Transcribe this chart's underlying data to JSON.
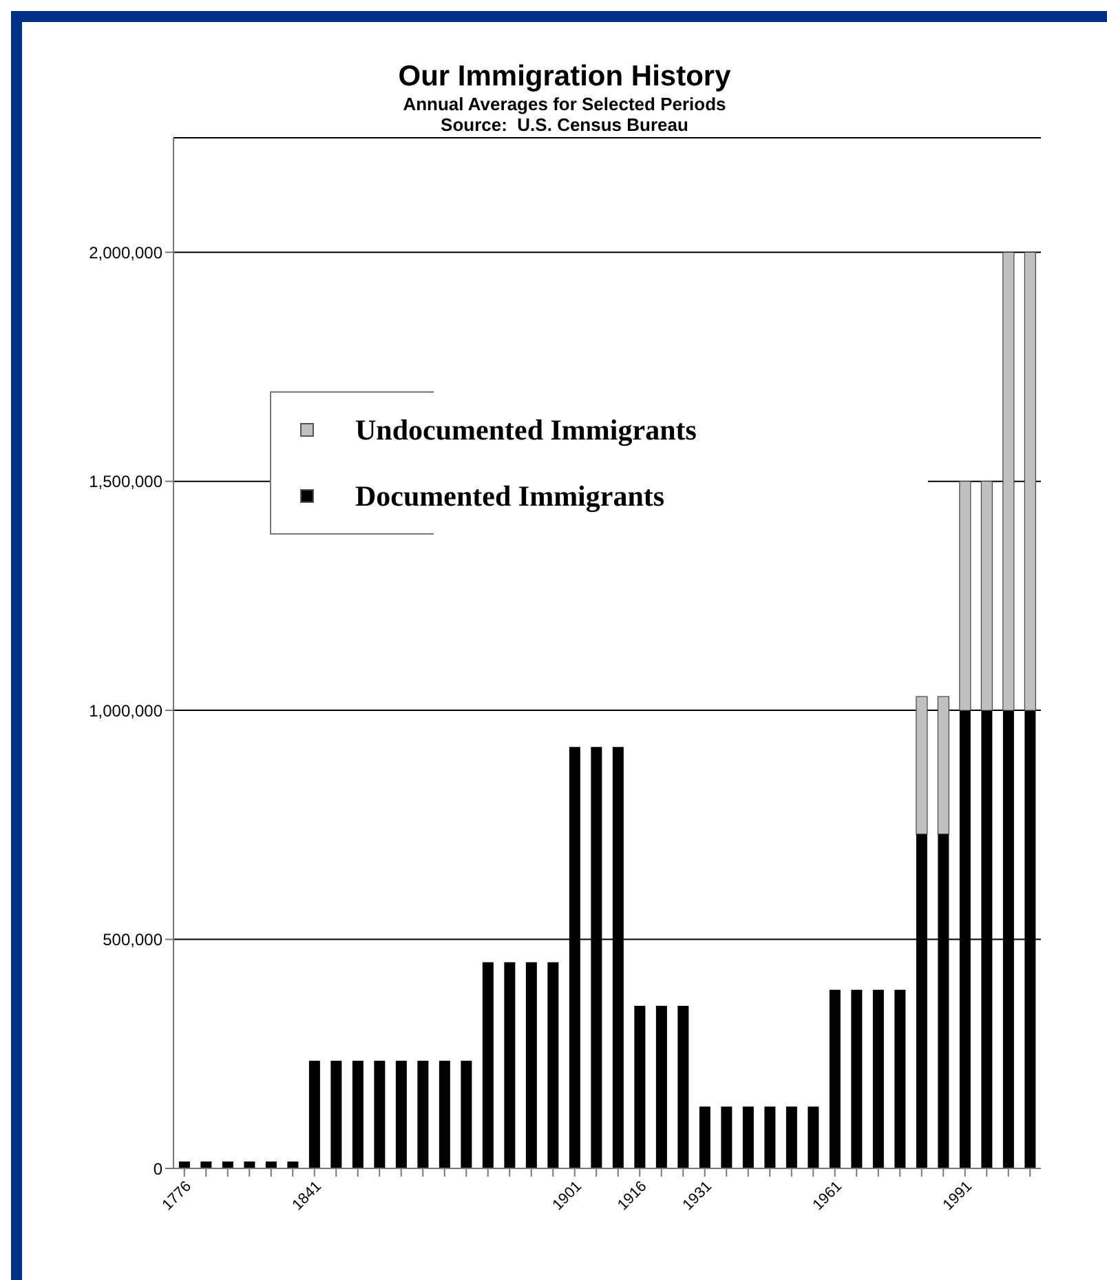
{
  "chart_data": {
    "type": "bar",
    "title": "Our Immigration History",
    "subtitle": "Annual Averages for Selected Periods",
    "annotations": [
      "Source:  U.S. Census Bureau"
    ],
    "categories": [
      "1776",
      null,
      null,
      null,
      null,
      null,
      "1841",
      null,
      null,
      null,
      null,
      null,
      null,
      null,
      null,
      null,
      null,
      null,
      "1901",
      null,
      null,
      "1916",
      null,
      null,
      "1931",
      null,
      null,
      null,
      null,
      null,
      "1961",
      null,
      null,
      null,
      null,
      null,
      "1991",
      null,
      null,
      null
    ],
    "stacked": true,
    "series": [
      {
        "name": "Documented Immigrants",
        "color": "#000000",
        "values": [
          15000,
          15000,
          15000,
          15000,
          15000,
          15000,
          235000,
          235000,
          235000,
          235000,
          235000,
          235000,
          235000,
          235000,
          450000,
          450000,
          450000,
          450000,
          920000,
          920000,
          920000,
          355000,
          355000,
          355000,
          135000,
          135000,
          135000,
          135000,
          135000,
          135000,
          390000,
          390000,
          390000,
          390000,
          730000,
          730000,
          1000000,
          1000000,
          1000000,
          1000000
        ]
      },
      {
        "name": "Undocumented Immigrants",
        "color": "#c0c0c0",
        "values": [
          0,
          0,
          0,
          0,
          0,
          0,
          0,
          0,
          0,
          0,
          0,
          0,
          0,
          0,
          0,
          0,
          0,
          0,
          0,
          0,
          0,
          0,
          0,
          0,
          0,
          0,
          0,
          0,
          0,
          0,
          0,
          0,
          0,
          0,
          300000,
          300000,
          500000,
          500000,
          1000000,
          1000000
        ]
      }
    ],
    "ylim": [
      0,
      2250000
    ],
    "yticks": [
      0,
      {
        "value": 500000,
        "label": "500,000"
      },
      {
        "value": 1000000,
        "label": "1,000,000"
      },
      {
        "value": 1500000,
        "label": "1,500,000"
      },
      {
        "value": 2000000,
        "label": "2,000,000"
      }
    ],
    "grid": "y",
    "legend": "top left"
  }
}
